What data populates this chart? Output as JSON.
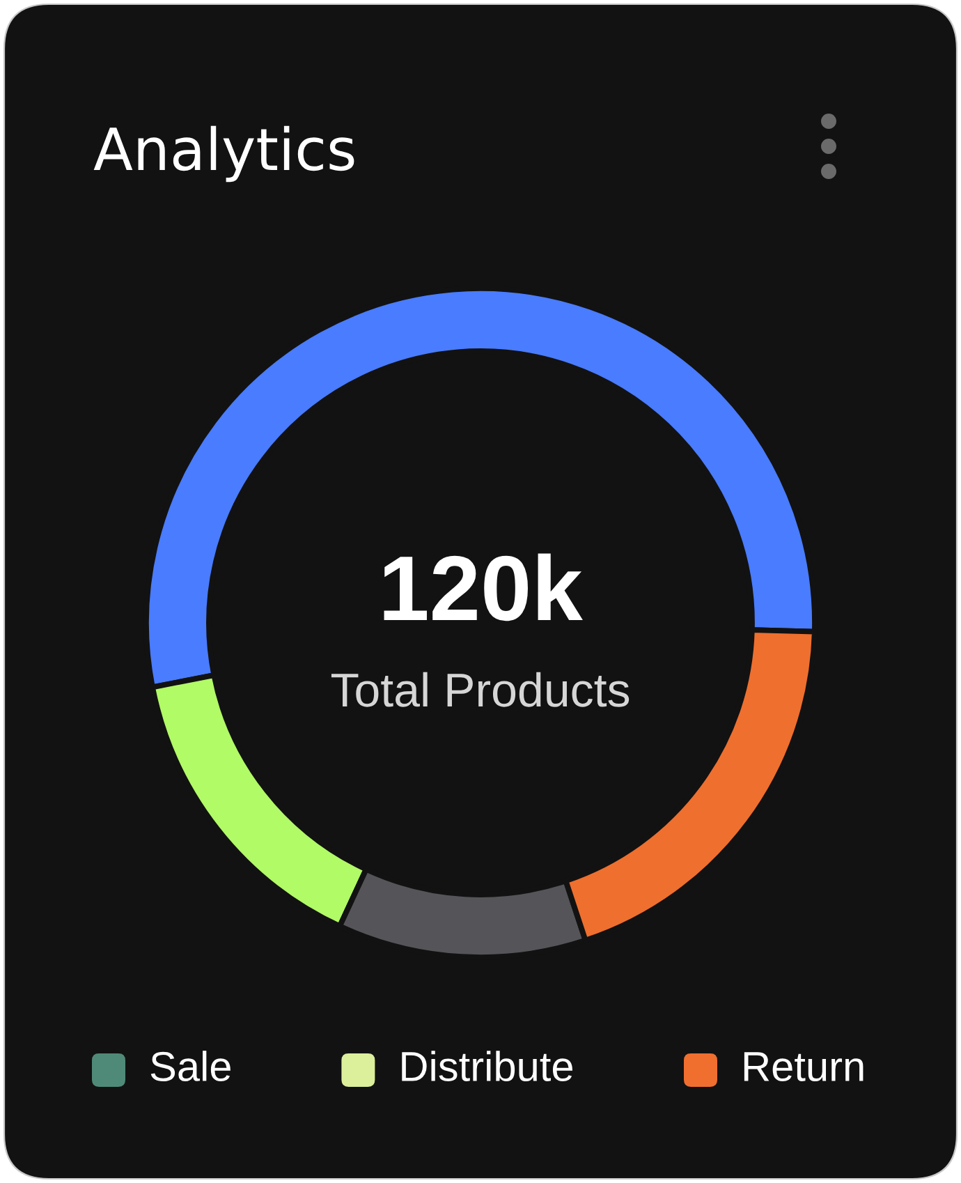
{
  "chart_data": [
    {
      "type": "donut",
      "title": "Analytics",
      "categories": [
        null,
        null,
        null,
        null
      ],
      "values": [
        53.5,
        15,
        12,
        19.5
      ],
      "colors": [
        "#497cff",
        "#b1fb66",
        "#545459",
        "#ef6f2e"
      ],
      "annotations": [
        "120k",
        "Total Products"
      ]
    },
    {
      "type": "other",
      "categories": [
        "Sale",
        "Distribute",
        "Return"
      ],
      "colors": [
        "#4f8a78",
        "#dcef9b",
        "#f06f2f"
      ]
    }
  ]
}
